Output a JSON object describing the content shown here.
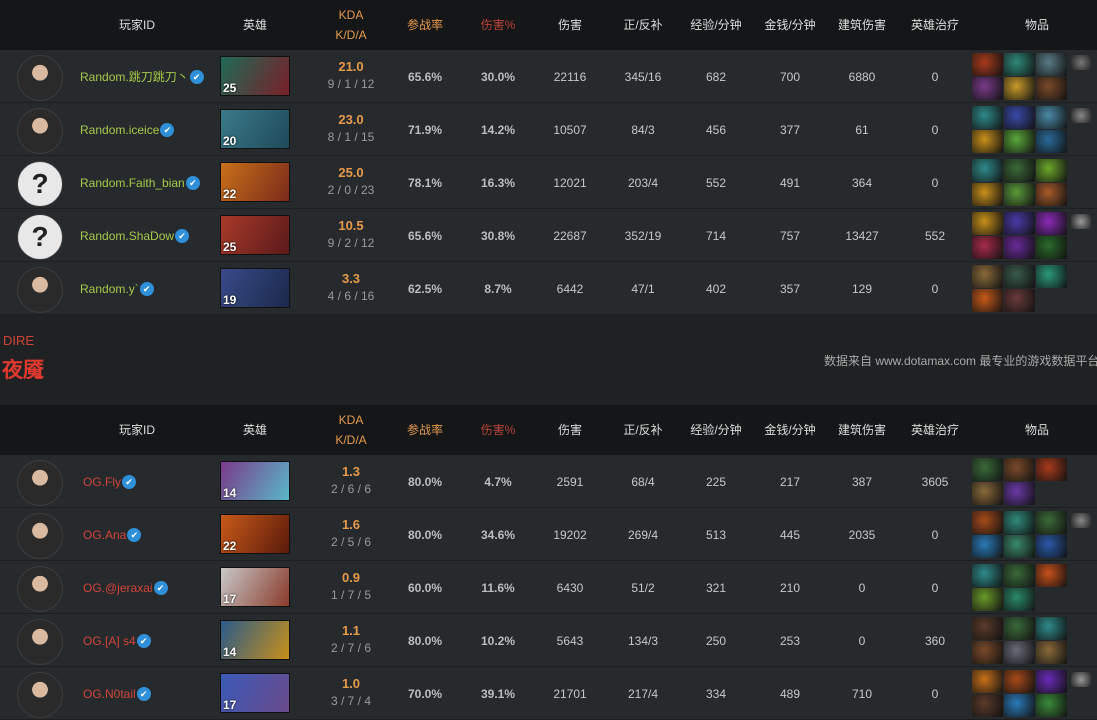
{
  "headers": {
    "player": "玩家ID",
    "hero": "英雄",
    "kda": "KDA",
    "kda2": "K/D/A",
    "participation": "参战率",
    "dmg_pct": "伤害%",
    "damage": "伤害",
    "lh_dn": "正/反补",
    "xpm": "经验/分钟",
    "gpm": "金钱/分钟",
    "building": "建筑伤害",
    "healing": "英雄治疗",
    "items": "物品"
  },
  "colors": {
    "radiant_name": "#a5c94a",
    "dire_name": "#d0443a",
    "kda": "#e69a4c",
    "verified": "#2f8fd8"
  },
  "radiant": [
    {
      "name": "Random.跳刀跳刀丶",
      "verified": true,
      "avatar": "photo",
      "hero_color": [
        "#1f6a55",
        "#7a1f2a"
      ],
      "level": "25",
      "kda": "21.0",
      "kdaline": "9 / 1 / 12",
      "part": "65.6%",
      "dmgpct": "30.0%",
      "dmg": "22116",
      "lhdn": "345/16",
      "xpm": "682",
      "gpm": "700",
      "bld": "6880",
      "heal": "0",
      "items": [
        "#a83a1c",
        "#2f8a7a",
        "#5a7a86",
        "#7a3a8a",
        "#c89a2a",
        "#7a4a2a"
      ],
      "extra": "#777"
    },
    {
      "name": "Random.iceice",
      "verified": true,
      "avatar": "photo",
      "hero_color": [
        "#3a7a8a",
        "#1f4a5a"
      ],
      "level": "20",
      "kda": "23.0",
      "kdaline": "8 / 1 / 15",
      "part": "71.9%",
      "dmgpct": "14.2%",
      "dmg": "10507",
      "lhdn": "84/3",
      "xpm": "456",
      "gpm": "377",
      "bld": "61",
      "heal": "0",
      "items": [
        "#2f8a8a",
        "#3a4aa8",
        "#4a8aa8",
        "#c8901a",
        "#5aa83a",
        "#2a6a9a"
      ],
      "extra": "#888"
    },
    {
      "name": "Random.Faith_bian",
      "verified": true,
      "avatar": "unknown",
      "hero_color": [
        "#c8701a",
        "#7a2a1a"
      ],
      "level": "22",
      "kda": "25.0",
      "kdaline": "2 / 0 / 23",
      "part": "78.1%",
      "dmgpct": "16.3%",
      "dmg": "12021",
      "lhdn": "203/4",
      "xpm": "552",
      "gpm": "491",
      "bld": "364",
      "heal": "0",
      "items": [
        "#2f8a8a",
        "#3a6a3a",
        "#6aa82a",
        "#c8901a",
        "#5a9a3a",
        "#a85a2a"
      ]
    },
    {
      "name": "Random.ShaDow",
      "verified": true,
      "avatar": "unknown",
      "hero_color": [
        "#a83a2a",
        "#5a1a1a"
      ],
      "level": "25",
      "kda": "10.5",
      "kdaline": "9 / 2 / 12",
      "part": "65.6%",
      "dmgpct": "30.8%",
      "dmg": "22687",
      "lhdn": "352/19",
      "xpm": "714",
      "gpm": "757",
      "bld": "13427",
      "heal": "552",
      "items": [
        "#c8901a",
        "#4a3aa8",
        "#8a2ab8",
        "#a82a4a",
        "#6a2a9a",
        "#2a6a2a"
      ],
      "extra": "#999"
    },
    {
      "name": "Random.y`",
      "verified": true,
      "avatar": "photo",
      "hero_color": [
        "#3a4a8a",
        "#1a2a4a"
      ],
      "level": "19",
      "kda": "3.3",
      "kdaline": "4 / 6 / 16",
      "part": "62.5%",
      "dmgpct": "8.7%",
      "dmg": "6442",
      "lhdn": "47/1",
      "xpm": "402",
      "gpm": "357",
      "bld": "129",
      "heal": "0",
      "items": [
        "#8a6a3a",
        "#3a5a4a",
        "#2a9a7a",
        "#c85a1a",
        "#6a3a3a"
      ]
    }
  ],
  "dire_label": "DIRE",
  "dire_title": "夜魇",
  "source": "数据来自 www.dotamax.com 最专业的游戏数据平台",
  "dire": [
    {
      "name": "OG.Fly",
      "verified": true,
      "avatar": "photo",
      "hero_color": [
        "#7a3a8a",
        "#5ab8c8"
      ],
      "level": "14",
      "kda": "1.3",
      "kdaline": "2 / 6 / 6",
      "part": "80.0%",
      "dmgpct": "4.7%",
      "dmg": "2591",
      "lhdn": "68/4",
      "xpm": "225",
      "gpm": "217",
      "bld": "387",
      "heal": "3605",
      "items": [
        "#3a6a3a",
        "#7a4a2a",
        "#a83a1c",
        "#8a6a3a",
        "#6a3aa8"
      ]
    },
    {
      "name": "OG.Ana",
      "verified": true,
      "avatar": "photo",
      "hero_color": [
        "#c85a1a",
        "#5a1a0a"
      ],
      "level": "22",
      "kda": "1.6",
      "kdaline": "2 / 5 / 6",
      "part": "80.0%",
      "dmgpct": "34.6%",
      "dmg": "19202",
      "lhdn": "269/4",
      "xpm": "513",
      "gpm": "445",
      "bld": "2035",
      "heal": "0",
      "items": [
        "#a84a1a",
        "#2f8a7a",
        "#3a6a3a",
        "#2a7ab8",
        "#3a8a6a",
        "#2a5aa8"
      ],
      "extra": "#888"
    },
    {
      "name": "OG.@jeraxai",
      "verified": true,
      "avatar": "photo",
      "hero_color": [
        "#c8c8c8",
        "#8a3a2a"
      ],
      "level": "17",
      "kda": "0.9",
      "kdaline": "1 / 7 / 5",
      "part": "60.0%",
      "dmgpct": "11.6%",
      "dmg": "6430",
      "lhdn": "51/2",
      "xpm": "321",
      "gpm": "210",
      "bld": "0",
      "heal": "0",
      "items": [
        "#2f8a8a",
        "#3a6a3a",
        "#c8501a",
        "#6a9a2a",
        "#2a8a6a"
      ]
    },
    {
      "name": "OG.[A] s4",
      "verified": true,
      "avatar": "photo",
      "hero_color": [
        "#2a5a8a",
        "#c8901a"
      ],
      "level": "14",
      "kda": "1.1",
      "kdaline": "2 / 7 / 6",
      "part": "80.0%",
      "dmgpct": "10.2%",
      "dmg": "5643",
      "lhdn": "134/3",
      "xpm": "250",
      "gpm": "253",
      "bld": "0",
      "heal": "360",
      "items": [
        "#5a3a2a",
        "#3a6a3a",
        "#2f8a8a",
        "#7a4a2a",
        "#6a6a7a",
        "#8a6a3a"
      ]
    },
    {
      "name": "OG.N0tail",
      "verified": true,
      "avatar": "photo",
      "hero_color": [
        "#3a5ab8",
        "#6a4a8a"
      ],
      "level": "17",
      "kda": "1.0",
      "kdaline": "3 / 7 / 4",
      "part": "70.0%",
      "dmgpct": "39.1%",
      "dmg": "21701",
      "lhdn": "217/4",
      "xpm": "334",
      "gpm": "489",
      "bld": "710",
      "heal": "0",
      "items": [
        "#c8701a",
        "#a84a1a",
        "#6a2ab8",
        "#5a3a2a",
        "#2a7ab8",
        "#3a8a3a"
      ],
      "extra": "#999"
    }
  ]
}
